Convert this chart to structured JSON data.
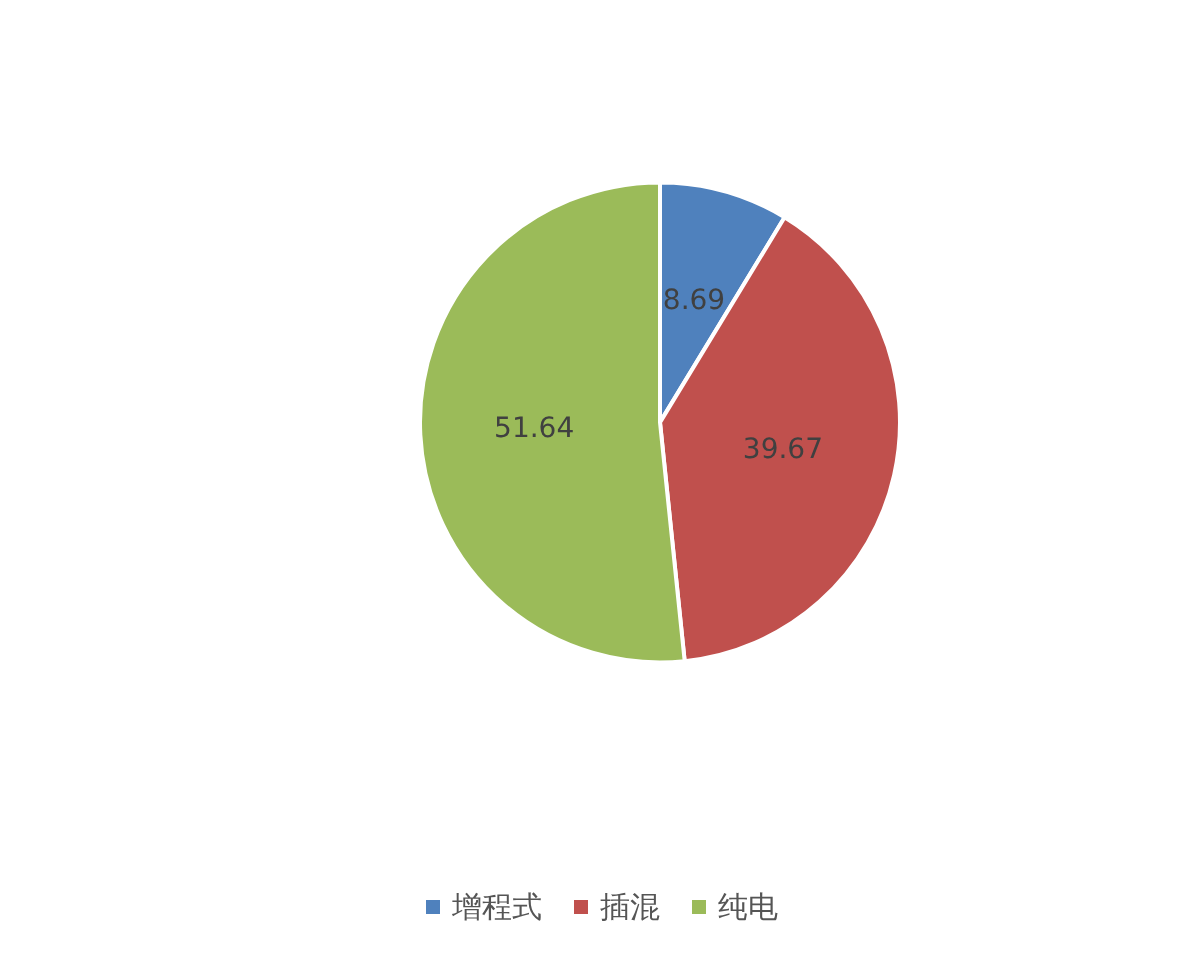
{
  "chart_data": {
    "type": "pie",
    "categories": [
      "增程式",
      "插混",
      "纯电"
    ],
    "values": [
      8.69,
      39.67,
      51.64
    ],
    "colors": [
      "#4f81bd",
      "#c0504d",
      "#9bbb59"
    ],
    "data_labels": true,
    "legend": "bottom"
  }
}
